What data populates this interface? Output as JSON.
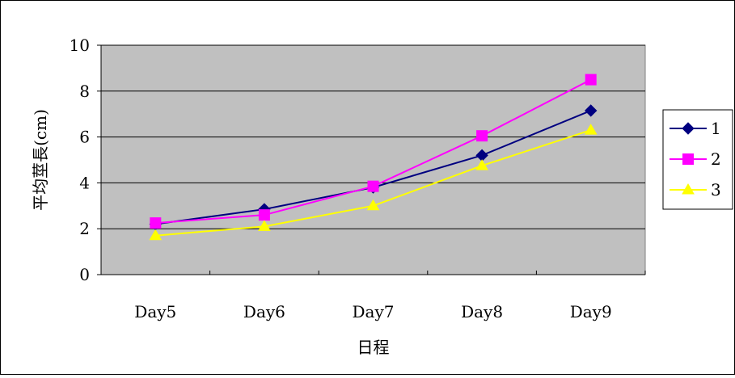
{
  "chart_data": {
    "type": "line",
    "categories": [
      "Day5",
      "Day6",
      "Day7",
      "Day8",
      "Day9"
    ],
    "series": [
      {
        "name": "1",
        "values": [
          2.2,
          2.85,
          3.8,
          5.2,
          7.15
        ],
        "color": "#000080",
        "marker": "diamond"
      },
      {
        "name": "2",
        "values": [
          2.25,
          2.6,
          3.85,
          6.05,
          8.5
        ],
        "color": "#ff00ff",
        "marker": "square"
      },
      {
        "name": "3",
        "values": [
          1.7,
          2.1,
          3.0,
          4.75,
          6.3
        ],
        "color": "#ffff00",
        "marker": "triangle"
      }
    ],
    "xlabel": "日程",
    "ylabel": "平均莖長(cm)",
    "ylim": [
      0,
      10
    ],
    "yticks": [
      "0",
      "2",
      "4",
      "6",
      "8",
      "10"
    ],
    "grid": true,
    "plot_background": "#c0c0c0",
    "legend_position": "right"
  }
}
